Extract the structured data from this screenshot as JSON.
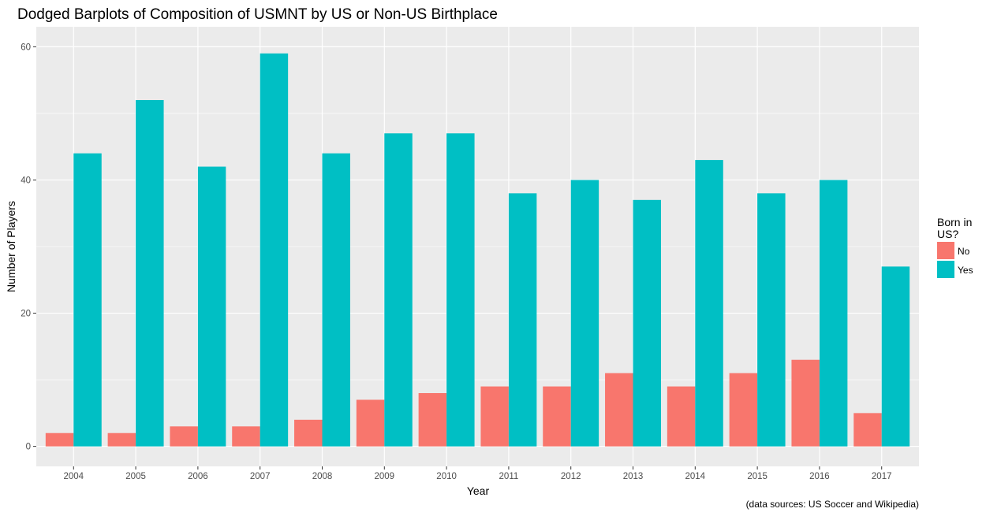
{
  "chart_data": {
    "type": "bar",
    "title": "Dodged Barplots of Composition of USMNT by US or Non-US Birthplace",
    "xlabel": "Year",
    "ylabel": "Number of Players",
    "caption": "(data sources: US Soccer and Wikipedia)",
    "categories": [
      "2004",
      "2005",
      "2006",
      "2007",
      "2008",
      "2009",
      "2010",
      "2011",
      "2012",
      "2013",
      "2014",
      "2015",
      "2016",
      "2017"
    ],
    "series": [
      {
        "name": "No",
        "color": "#F8766D",
        "values": [
          2,
          2,
          3,
          3,
          4,
          7,
          8,
          9,
          9,
          11,
          9,
          11,
          13,
          5
        ]
      },
      {
        "name": "Yes",
        "color": "#00BFC4",
        "values": [
          44,
          52,
          42,
          59,
          44,
          47,
          47,
          38,
          40,
          37,
          43,
          38,
          40,
          27
        ]
      }
    ],
    "ylim": [
      -3,
      63
    ],
    "yticks": [
      0,
      20,
      40,
      60
    ],
    "legend": {
      "title_lines": [
        "Born in",
        "US?"
      ],
      "placement": "right"
    },
    "grid": true,
    "panel_background": "#EBEBEB"
  }
}
